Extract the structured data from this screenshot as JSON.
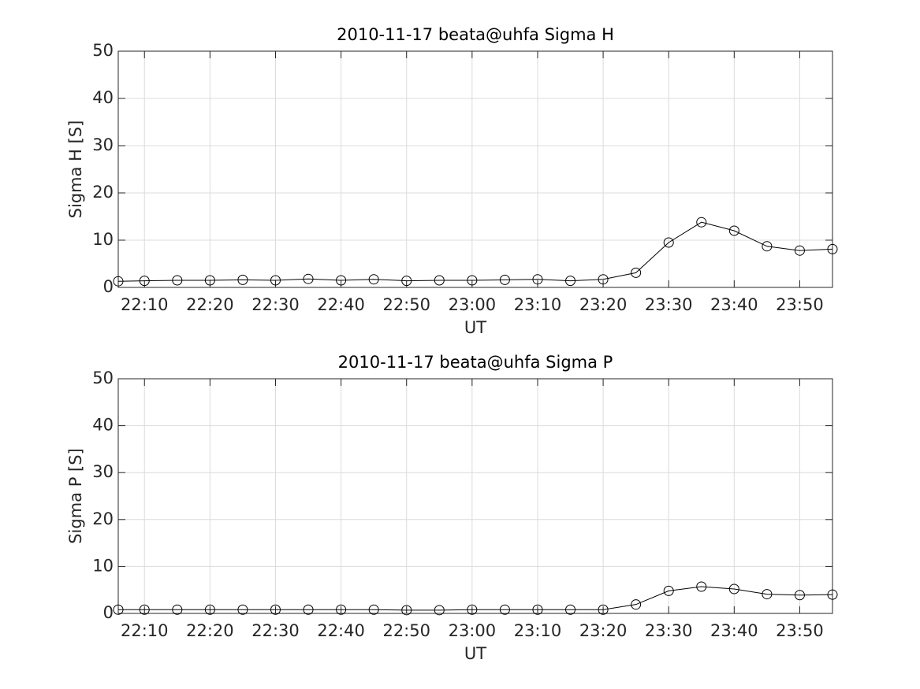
{
  "chart_data": [
    {
      "type": "line",
      "title": "2010-11-17  beata@uhfa Sigma H",
      "xlabel": "UT",
      "ylabel": "Sigma H [S]",
      "x": [
        "22:06",
        "22:10",
        "22:15",
        "22:20",
        "22:25",
        "22:30",
        "22:35",
        "22:40",
        "22:45",
        "22:50",
        "22:55",
        "23:00",
        "23:05",
        "23:10",
        "23:15",
        "23:20",
        "23:25",
        "23:30",
        "23:35",
        "23:40",
        "23:45",
        "23:50",
        "23:55"
      ],
      "series": [
        {
          "color": "#000000",
          "values": [
            1.3,
            1.4,
            1.5,
            1.5,
            1.6,
            1.5,
            1.8,
            1.5,
            1.7,
            1.4,
            1.5,
            1.5,
            1.6,
            1.7,
            1.4,
            1.7,
            3.1,
            9.5,
            13.8,
            12.0,
            8.7,
            7.8,
            8.1
          ]
        }
      ],
      "xlim": [
        "22:06",
        "23:55"
      ],
      "xticks": [
        "22:10",
        "22:20",
        "22:30",
        "22:40",
        "22:50",
        "23:00",
        "23:10",
        "23:20",
        "23:30",
        "23:40",
        "23:50"
      ],
      "ylim": [
        0,
        50
      ],
      "yticks": [
        0,
        10,
        20,
        30,
        40,
        50
      ],
      "grid": true
    },
    {
      "type": "line",
      "title": "2010-11-17  beata@uhfa Sigma P",
      "xlabel": "UT",
      "ylabel": "Sigma P [S]",
      "x": [
        "22:06",
        "22:10",
        "22:15",
        "22:20",
        "22:25",
        "22:30",
        "22:35",
        "22:40",
        "22:45",
        "22:50",
        "22:55",
        "23:00",
        "23:05",
        "23:10",
        "23:15",
        "23:20",
        "23:25",
        "23:30",
        "23:35",
        "23:40",
        "23:45",
        "23:50",
        "23:55"
      ],
      "series": [
        {
          "color": "#000000",
          "values": [
            0.8,
            0.8,
            0.8,
            0.8,
            0.8,
            0.8,
            0.8,
            0.8,
            0.8,
            0.7,
            0.7,
            0.8,
            0.8,
            0.8,
            0.8,
            0.8,
            1.9,
            4.8,
            5.7,
            5.2,
            4.1,
            3.9,
            4.0
          ]
        }
      ],
      "xlim": [
        "22:06",
        "23:55"
      ],
      "xticks": [
        "22:10",
        "22:20",
        "22:30",
        "22:40",
        "22:50",
        "23:00",
        "23:10",
        "23:20",
        "23:30",
        "23:40",
        "23:50"
      ],
      "ylim": [
        0,
        50
      ],
      "yticks": [
        0,
        10,
        20,
        30,
        40,
        50
      ],
      "grid": true
    }
  ]
}
